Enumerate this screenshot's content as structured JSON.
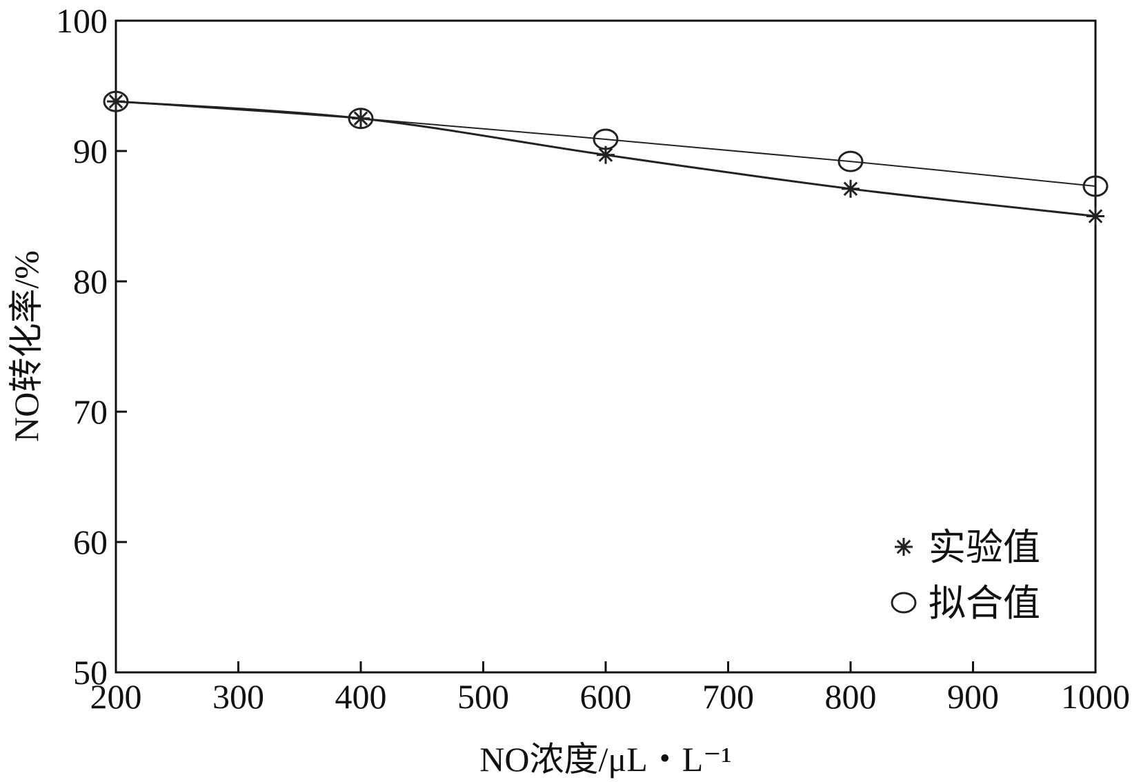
{
  "chart_data": {
    "type": "line",
    "title": "",
    "xlabel": "NO浓度/μL・L⁻¹",
    "ylabel": "NO转化率/%",
    "xlim": [
      200,
      1000
    ],
    "ylim": [
      50,
      100
    ],
    "xticks": [
      200,
      300,
      400,
      500,
      600,
      700,
      800,
      900,
      1000
    ],
    "yticks": [
      50,
      60,
      70,
      80,
      90,
      100
    ],
    "grid": false,
    "legend_position": "bottom-right",
    "series": [
      {
        "name": "实验值",
        "marker": "asterisk",
        "color": "#222222",
        "x": [
          200,
          400,
          600,
          800,
          1000
        ],
        "y": [
          93.8,
          92.5,
          89.7,
          87.1,
          85.0
        ]
      },
      {
        "name": "拟合值",
        "marker": "circle",
        "color": "#222222",
        "x": [
          200,
          400,
          600,
          800,
          1000
        ],
        "y": [
          93.8,
          92.5,
          90.9,
          89.2,
          87.3
        ]
      }
    ]
  }
}
